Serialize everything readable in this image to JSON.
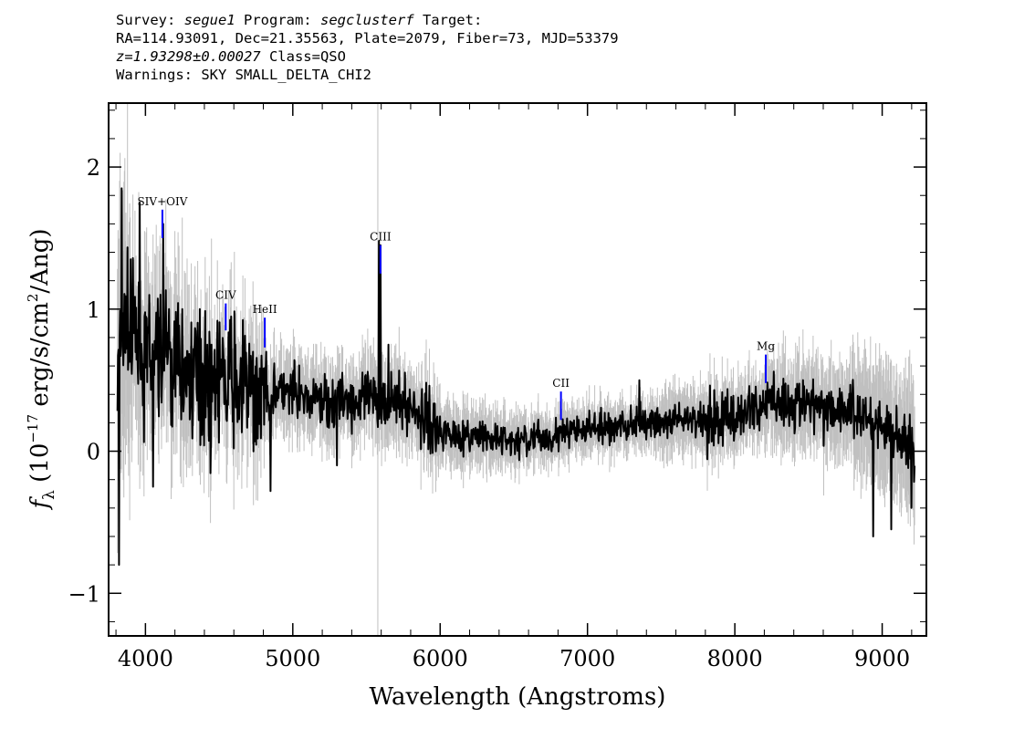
{
  "header": {
    "line1_prefix": "Survey: ",
    "survey": "segue1",
    "line1_mid": " Program: ",
    "program": "segclusterf",
    "line1_suffix": " Target:",
    "line2": "RA=114.93091, Dec=21.35563, Plate=2079, Fiber=73, MJD=53379",
    "redshift": "z=1.93298±0.00027",
    "class_text": " Class=QSO",
    "warnings": "Warnings: SKY SMALL_DELTA_CHI2"
  },
  "chart_data": {
    "type": "line",
    "xlabel": "Wavelength (Angstroms)",
    "ylabel_prefix": "f",
    "ylabel_sub": "λ",
    "ylabel_mid": " (10",
    "ylabel_exp": "−17",
    "ylabel_unit": " erg/s/cm",
    "ylabel_exp2": "2",
    "ylabel_suffix": "/Ang)",
    "xlim": [
      3750,
      9300
    ],
    "ylim": [
      -1.3,
      2.45
    ],
    "x_ticks": [
      4000,
      5000,
      6000,
      7000,
      8000,
      9000
    ],
    "x_tick_labels": [
      "4000",
      "5000",
      "6000",
      "7000",
      "8000",
      "9000"
    ],
    "y_ticks": [
      -1,
      0,
      1,
      2
    ],
    "y_tick_labels": [
      "−1",
      "0",
      "1",
      "2"
    ],
    "sky_line_x": 5577,
    "continuum": {
      "x": [
        3800,
        3850,
        3900,
        4000,
        4100,
        4200,
        4300,
        4400,
        4500,
        4600,
        4700,
        4800,
        4900,
        5000,
        5200,
        5400,
        5550,
        5700,
        5800,
        5900,
        6000,
        6200,
        6400,
        6500,
        6600,
        6800,
        7000,
        7200,
        7400,
        7600,
        7800,
        8000,
        8200,
        8300,
        8500,
        8700,
        8800,
        9000,
        9100,
        9200,
        9220
      ],
      "y": [
        0.4,
        0.9,
        0.8,
        0.6,
        0.7,
        0.6,
        0.55,
        0.52,
        0.48,
        0.5,
        0.42,
        0.42,
        0.42,
        0.38,
        0.36,
        0.35,
        0.36,
        0.37,
        0.3,
        0.23,
        0.15,
        0.1,
        0.08,
        0.06,
        0.08,
        0.12,
        0.15,
        0.17,
        0.2,
        0.2,
        0.23,
        0.25,
        0.33,
        0.35,
        0.32,
        0.3,
        0.28,
        0.2,
        0.1,
        0.05,
        -0.15
      ]
    },
    "spikes": [
      {
        "x": 3840,
        "y": 1.85
      },
      {
        "x": 3900,
        "y": 1.35
      },
      {
        "x": 3960,
        "y": 1.75
      },
      {
        "x": 4025,
        "y": 1.1
      },
      {
        "x": 4120,
        "y": 1.6
      },
      {
        "x": 4160,
        "y": 1.0
      },
      {
        "x": 4370,
        "y": 1.0
      },
      {
        "x": 4450,
        "y": 0.75
      },
      {
        "x": 4610,
        "y": 0.75
      },
      {
        "x": 4730,
        "y": 0.7
      },
      {
        "x": 4820,
        "y": 0.7
      },
      {
        "x": 5585,
        "y": 1.48
      },
      {
        "x": 5595,
        "y": 1.45
      },
      {
        "x": 5650,
        "y": 0.75
      },
      {
        "x": 7350,
        "y": 0.5
      },
      {
        "x": 3820,
        "y": -0.8
      },
      {
        "x": 4050,
        "y": -0.25
      },
      {
        "x": 4850,
        "y": -0.28
      },
      {
        "x": 5300,
        "y": -0.1
      },
      {
        "x": 8940,
        "y": -0.6
      },
      {
        "x": 9060,
        "y": -0.55
      },
      {
        "x": 9200,
        "y": -0.4
      }
    ],
    "emission_lines": [
      {
        "label": "SIV+OIV",
        "x": 4115,
        "y_top": 1.7,
        "y_bottom": 1.5
      },
      {
        "label": "CIV",
        "x": 4545,
        "y_top": 1.04,
        "y_bottom": 0.85
      },
      {
        "label": "HeII",
        "x": 4810,
        "y_top": 0.94,
        "y_bottom": 0.73
      },
      {
        "label": "CIII",
        "x": 5595,
        "y_top": 1.45,
        "y_bottom": 1.25
      },
      {
        "label": "CII",
        "x": 6820,
        "y_top": 0.42,
        "y_bottom": 0.22
      },
      {
        "label": "Mg",
        "x": 8210,
        "y_top": 0.68,
        "y_bottom": 0.48
      }
    ],
    "colors": {
      "flux": "#000000",
      "error_band": "#c0c0c0",
      "line_marker": "#0000ff",
      "sky_line": "#c0c0c0"
    }
  }
}
